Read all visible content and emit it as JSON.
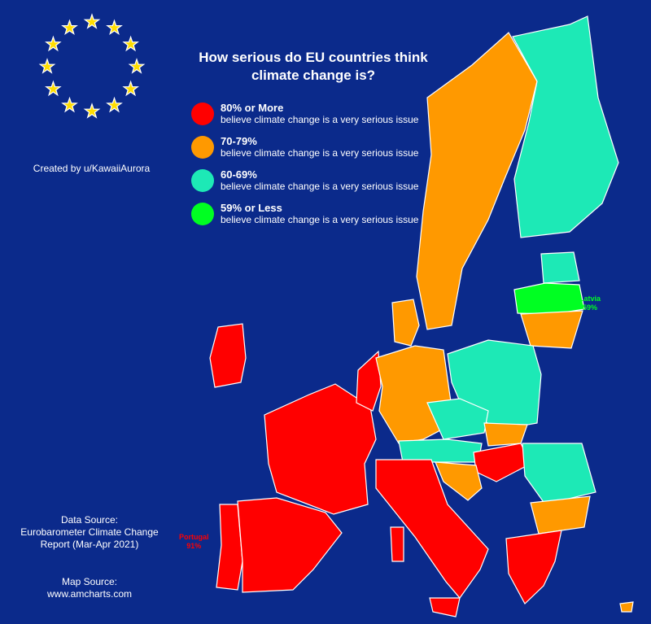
{
  "title": "How serious do EU countries think climate change is?",
  "legend": [
    {
      "label": "80% or More",
      "description": "believe climate change is a very serious issue",
      "color": "#ff0000"
    },
    {
      "label": "70-79%",
      "description": "believe climate change is a very serious issue",
      "color": "#ff9900"
    },
    {
      "label": "60-69%",
      "description": "believe climate change is a very serious issue",
      "color": "#1de9b6"
    },
    {
      "label": "59% or Less",
      "description": "believe climate change is a very serious issue",
      "color": "#00ff22"
    }
  ],
  "credit": "Created by u/KawaiiAurora",
  "data_source": [
    "Data Source:",
    "Eurobarometer Climate Change",
    "Report (Mar-Apr 2021)"
  ],
  "map_source": [
    "Map Source:",
    "www.amcharts.com"
  ],
  "annotations": [
    {
      "country": "Latvia",
      "value": "59%",
      "color": "#00ff22"
    },
    {
      "country": "Portugal",
      "value": "91%",
      "color": "#ff0000"
    }
  ]
}
